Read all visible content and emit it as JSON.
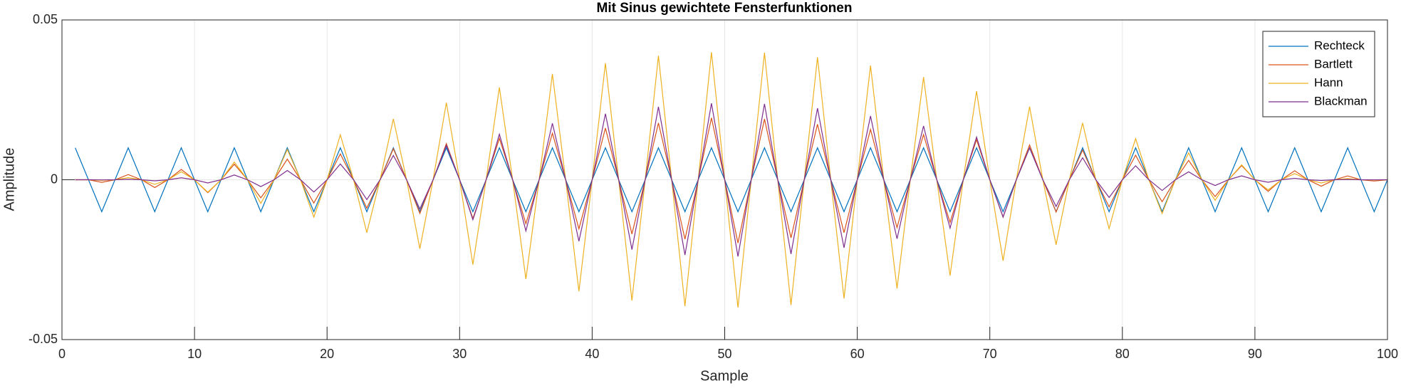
{
  "chart_data": {
    "type": "line",
    "title": "Mit Sinus gewichtete Fensterfunktionen",
    "xlabel": "Sample",
    "ylabel": "Amplitude",
    "xlim": [
      0,
      100
    ],
    "ylim": [
      -0.05,
      0.05
    ],
    "xticks": [
      0,
      10,
      20,
      30,
      40,
      50,
      60,
      70,
      80,
      90,
      100
    ],
    "yticks": [
      -0.05,
      0,
      0.05
    ],
    "grid": true,
    "legend": "northeast",
    "x": [
      1,
      2,
      3,
      4,
      5,
      6,
      7,
      8,
      9,
      10,
      11,
      12,
      13,
      14,
      15,
      16,
      17,
      18,
      19,
      20,
      21,
      22,
      23,
      24,
      25,
      26,
      27,
      28,
      29,
      30,
      31,
      32,
      33,
      34,
      35,
      36,
      37,
      38,
      39,
      40,
      41,
      42,
      43,
      44,
      45,
      46,
      47,
      48,
      49,
      50,
      51,
      52,
      53,
      54,
      55,
      56,
      57,
      58,
      59,
      60,
      61,
      62,
      63,
      64,
      65,
      66,
      67,
      68,
      69,
      70,
      71,
      72,
      73,
      74,
      75,
      76,
      77,
      78,
      79,
      80,
      81,
      82,
      83,
      84,
      85,
      86,
      87,
      88,
      89,
      90,
      91,
      92,
      93,
      94,
      95,
      96,
      97,
      98,
      99,
      100
    ],
    "series": [
      {
        "name": "Rechteck",
        "color": "#0072bd",
        "values": [
          0.01,
          0,
          -0.01,
          0,
          0.01,
          0,
          -0.01,
          0,
          0.01,
          0,
          -0.01,
          0,
          0.01,
          0,
          -0.01,
          0,
          0.01,
          0,
          -0.01,
          0,
          0.01,
          0,
          -0.01,
          0,
          0.01,
          0,
          -0.01,
          0,
          0.01,
          0,
          -0.01,
          0,
          0.01,
          0,
          -0.01,
          0,
          0.01,
          0,
          -0.01,
          0,
          0.01,
          0,
          -0.01,
          0,
          0.01,
          0,
          -0.01,
          0,
          0.01,
          0,
          -0.01,
          0,
          0.01,
          0,
          -0.01,
          0,
          0.01,
          0,
          -0.01,
          0,
          0.01,
          0,
          -0.01,
          0,
          0.01,
          0,
          -0.01,
          0,
          0.01,
          0,
          -0.01,
          0,
          0.01,
          0,
          -0.01,
          0,
          0.01,
          0,
          -0.01,
          0,
          0.01,
          0,
          -0.01,
          0,
          0.01,
          0,
          -0.01,
          0,
          0.01,
          0,
          -0.01,
          0,
          0.01,
          0,
          -0.01,
          0,
          0.01,
          0,
          -0.01,
          0
        ]
      },
      {
        "name": "Bartlett",
        "color": "#d95319",
        "values": [
          0,
          0,
          -0.00081,
          0,
          0.00162,
          0,
          -0.00242,
          0,
          0.00323,
          0,
          -0.00404,
          0,
          0.00485,
          0,
          -0.00566,
          0,
          0.00646,
          0,
          -0.00727,
          0,
          0.00808,
          0,
          -0.00889,
          0,
          0.0097,
          0,
          -0.01051,
          0,
          0.01131,
          0,
          -0.01212,
          0,
          0.01293,
          0,
          -0.01374,
          0,
          0.01455,
          0,
          -0.01535,
          0,
          0.01616,
          0,
          -0.01697,
          0,
          0.01778,
          0,
          -0.01859,
          0,
          0.01939,
          0,
          -0.0198,
          0,
          0.01899,
          0,
          -0.01818,
          0,
          0.01737,
          0,
          -0.01657,
          0,
          0.01576,
          0,
          -0.01495,
          0,
          0.01414,
          0,
          -0.01333,
          0,
          0.01253,
          0,
          -0.01172,
          0,
          0.01091,
          0,
          -0.0101,
          0,
          0.00929,
          0,
          -0.00848,
          0,
          0.00768,
          0,
          -0.00687,
          0,
          0.00606,
          0,
          -0.00525,
          0,
          0.00444,
          0,
          -0.00364,
          0,
          0.00283,
          0,
          -0.00202,
          0,
          0.00121,
          0,
          -0.0004,
          0
        ]
      },
      {
        "name": "Hann",
        "color": "#edb120",
        "values": [
          0,
          0,
          -0.00016,
          0,
          0.00064,
          0,
          -0.00143,
          0,
          0.00252,
          0,
          -0.00389,
          0,
          0.00553,
          0,
          -0.00739,
          0,
          0.00946,
          0,
          -0.01169,
          0,
          0.01406,
          0,
          -0.01653,
          0,
          0.01905,
          0,
          -0.02158,
          0,
          0.0241,
          0,
          -0.02654,
          0,
          0.02888,
          0,
          -0.03108,
          0,
          0.0331,
          0,
          -0.0349,
          0,
          0.03647,
          0,
          -0.03778,
          0,
          0.03879,
          0,
          -0.03951,
          0,
          0.03991,
          0,
          -0.03999,
          0,
          0.03975,
          0,
          -0.03919,
          0,
          0.03832,
          0,
          -0.03716,
          0,
          0.03572,
          0,
          -0.03403,
          0,
          0.03211,
          0,
          -0.03,
          0,
          0.02773,
          0,
          -0.02533,
          0,
          0.02285,
          0,
          -0.02032,
          0,
          0.01778,
          0,
          -0.01528,
          0,
          0.01286,
          0,
          -0.01055,
          0,
          0.0084,
          0,
          -0.00643,
          0,
          0.00468,
          0,
          -0.00317,
          0,
          0.00194,
          0,
          -0.001,
          0,
          0.00036,
          0,
          -4e-05,
          0
        ]
      },
      {
        "name": "Blackman",
        "color": "#7e2f8e",
        "values": [
          0,
          0,
          -4e-05,
          0,
          0.00014,
          0,
          -0.00033,
          0,
          0.00061,
          0,
          -0.00099,
          0,
          0.00149,
          0,
          -0.00212,
          0,
          0.0029,
          0,
          -0.00384,
          0,
          0.00494,
          0,
          -0.00619,
          0,
          0.0076,
          0,
          -0.00914,
          0,
          0.01078,
          0,
          -0.0125,
          0,
          0.01425,
          0,
          -0.01599,
          0,
          0.01766,
          0,
          -0.01924,
          0,
          0.02065,
          0,
          -0.02186,
          0,
          0.02283,
          0,
          -0.02352,
          0,
          0.02391,
          0,
          -0.02399,
          0,
          0.02375,
          0,
          -0.02321,
          0,
          0.02238,
          0,
          -0.02128,
          0,
          0.01997,
          0,
          -0.01847,
          0,
          0.01684,
          0,
          -0.01512,
          0,
          0.01337,
          0,
          -0.01163,
          0,
          0.00995,
          0,
          -0.00835,
          0,
          0.00688,
          0,
          -0.00554,
          0,
          0.00437,
          0,
          -0.00335,
          0,
          0.00249,
          0,
          -0.00179,
          0,
          0.00122,
          0,
          -0.00078,
          0,
          0.00046,
          0,
          -0.00023,
          0,
          8e-05,
          0,
          -1e-05,
          0
        ]
      }
    ]
  }
}
